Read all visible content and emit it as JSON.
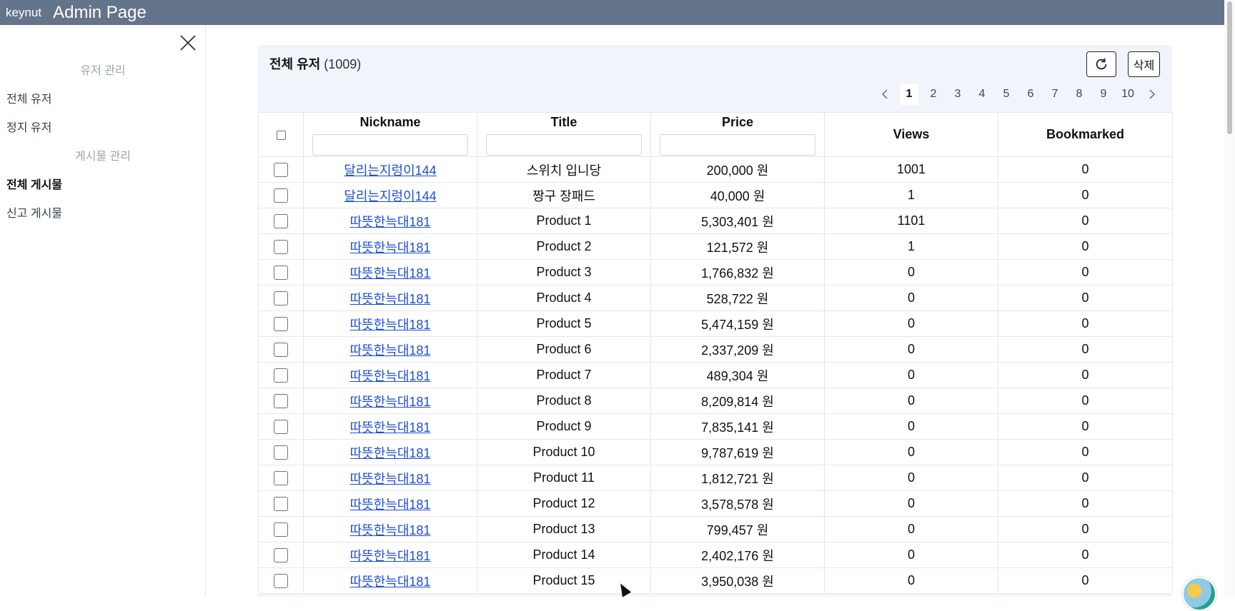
{
  "header": {
    "brand": "keynut",
    "title": "Admin Page"
  },
  "sidebar": {
    "close_icon": "close-icon",
    "sections": [
      {
        "label": "유저 관리",
        "items": [
          "전체 유저",
          "정지 유저"
        ]
      },
      {
        "label": "게시물 관리",
        "items": [
          "전체 게시물",
          "신고 게시물"
        ]
      }
    ],
    "active_item": "전체 게시물"
  },
  "panel": {
    "title": "전체 유저",
    "count": "(1009)",
    "refresh_icon": "refresh-icon",
    "delete_label": "삭제"
  },
  "pagination": {
    "prev_icon": "chevron-left-icon",
    "next_icon": "chevron-right-icon",
    "pages": [
      "1",
      "2",
      "3",
      "4",
      "5",
      "6",
      "7",
      "8",
      "9",
      "10"
    ],
    "active": "1"
  },
  "table": {
    "columns": [
      "Nickname",
      "Title",
      "Price",
      "Views",
      "Bookmarked"
    ],
    "rows": [
      {
        "nickname": "달리는지렁이144",
        "title": "스위치 입니당",
        "price": "200,000 원",
        "views": "1001",
        "bookmarked": "0"
      },
      {
        "nickname": "달리는지렁이144",
        "title": "짱구 장패드",
        "price": "40,000 원",
        "views": "1",
        "bookmarked": "0"
      },
      {
        "nickname": "따뜻한늑대181",
        "title": "Product 1",
        "price": "5,303,401 원",
        "views": "1101",
        "bookmarked": "0"
      },
      {
        "nickname": "따뜻한늑대181",
        "title": "Product 2",
        "price": "121,572 원",
        "views": "1",
        "bookmarked": "0"
      },
      {
        "nickname": "따뜻한늑대181",
        "title": "Product 3",
        "price": "1,766,832 원",
        "views": "0",
        "bookmarked": "0"
      },
      {
        "nickname": "따뜻한늑대181",
        "title": "Product 4",
        "price": "528,722 원",
        "views": "0",
        "bookmarked": "0"
      },
      {
        "nickname": "따뜻한늑대181",
        "title": "Product 5",
        "price": "5,474,159 원",
        "views": "0",
        "bookmarked": "0"
      },
      {
        "nickname": "따뜻한늑대181",
        "title": "Product 6",
        "price": "2,337,209 원",
        "views": "0",
        "bookmarked": "0"
      },
      {
        "nickname": "따뜻한늑대181",
        "title": "Product 7",
        "price": "489,304 원",
        "views": "0",
        "bookmarked": "0"
      },
      {
        "nickname": "따뜻한늑대181",
        "title": "Product 8",
        "price": "8,209,814 원",
        "views": "0",
        "bookmarked": "0"
      },
      {
        "nickname": "따뜻한늑대181",
        "title": "Product 9",
        "price": "7,835,141 원",
        "views": "0",
        "bookmarked": "0"
      },
      {
        "nickname": "따뜻한늑대181",
        "title": "Product 10",
        "price": "9,787,619 원",
        "views": "0",
        "bookmarked": "0"
      },
      {
        "nickname": "따뜻한늑대181",
        "title": "Product 11",
        "price": "1,812,721 원",
        "views": "0",
        "bookmarked": "0"
      },
      {
        "nickname": "따뜻한늑대181",
        "title": "Product 12",
        "price": "3,578,578 원",
        "views": "0",
        "bookmarked": "0"
      },
      {
        "nickname": "따뜻한늑대181",
        "title": "Product 13",
        "price": "799,457 원",
        "views": "0",
        "bookmarked": "0"
      },
      {
        "nickname": "따뜻한늑대181",
        "title": "Product 14",
        "price": "2,402,176 원",
        "views": "0",
        "bookmarked": "0"
      },
      {
        "nickname": "따뜻한늑대181",
        "title": "Product 15",
        "price": "3,950,038 원",
        "views": "0",
        "bookmarked": "0"
      }
    ]
  },
  "colors": {
    "topbar": "#64748b",
    "link": "#1d4ed8",
    "panel_bg": "#f1f5fb",
    "section_label": "#9ca3af"
  }
}
